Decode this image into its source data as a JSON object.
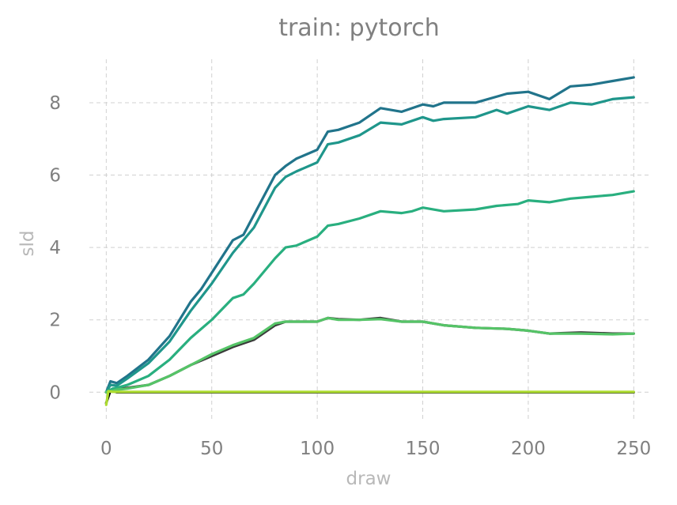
{
  "chart_data": {
    "type": "line",
    "title": "train: pytorch",
    "xlabel": "draw",
    "ylabel": "sld",
    "xlim": [
      -8,
      257
    ],
    "ylim": [
      -0.78,
      9.2
    ],
    "xticks": [
      0,
      50,
      100,
      150,
      200,
      250
    ],
    "yticks": [
      0,
      2,
      4,
      6,
      8
    ],
    "xtick_labels": [
      "0",
      "50",
      "100",
      "150",
      "200",
      "250"
    ],
    "ytick_labels": [
      "0",
      "2",
      "4",
      "6",
      "8"
    ],
    "grid": true,
    "legend": "none",
    "series": [
      {
        "color": "#000000",
        "points": [
          [
            0,
            -0.3
          ],
          [
            2,
            0.05
          ],
          [
            5,
            0.0
          ],
          [
            250,
            0.0
          ]
        ]
      },
      {
        "color": "#3a3a3a",
        "points": [
          [
            0,
            0.0
          ],
          [
            5,
            0.08
          ],
          [
            10,
            0.12
          ],
          [
            20,
            0.2
          ],
          [
            30,
            0.45
          ],
          [
            40,
            0.75
          ],
          [
            50,
            1.0
          ],
          [
            60,
            1.25
          ],
          [
            70,
            1.45
          ],
          [
            80,
            1.85
          ],
          [
            85,
            1.95
          ],
          [
            90,
            1.95
          ],
          [
            100,
            1.95
          ],
          [
            105,
            2.05
          ],
          [
            110,
            2.02
          ],
          [
            120,
            2.0
          ],
          [
            130,
            2.05
          ],
          [
            140,
            1.95
          ],
          [
            150,
            1.95
          ],
          [
            160,
            1.85
          ],
          [
            175,
            1.78
          ],
          [
            190,
            1.75
          ],
          [
            200,
            1.7
          ],
          [
            210,
            1.62
          ],
          [
            225,
            1.65
          ],
          [
            240,
            1.62
          ],
          [
            250,
            1.62
          ]
        ]
      },
      {
        "color": "#21748b",
        "points": [
          [
            0,
            0.0
          ],
          [
            2,
            0.3
          ],
          [
            5,
            0.25
          ],
          [
            10,
            0.45
          ],
          [
            20,
            0.9
          ],
          [
            30,
            1.55
          ],
          [
            40,
            2.5
          ],
          [
            45,
            2.85
          ],
          [
            50,
            3.3
          ],
          [
            60,
            4.2
          ],
          [
            65,
            4.35
          ],
          [
            70,
            4.9
          ],
          [
            80,
            6.0
          ],
          [
            85,
            6.25
          ],
          [
            90,
            6.45
          ],
          [
            100,
            6.7
          ],
          [
            105,
            7.2
          ],
          [
            110,
            7.25
          ],
          [
            120,
            7.45
          ],
          [
            130,
            7.85
          ],
          [
            140,
            7.75
          ],
          [
            150,
            7.95
          ],
          [
            155,
            7.9
          ],
          [
            160,
            8.0
          ],
          [
            175,
            8.0
          ],
          [
            190,
            8.25
          ],
          [
            200,
            8.3
          ],
          [
            210,
            8.1
          ],
          [
            220,
            8.45
          ],
          [
            230,
            8.5
          ],
          [
            240,
            8.6
          ],
          [
            250,
            8.7
          ]
        ]
      },
      {
        "color": "#1f968b",
        "points": [
          [
            0,
            0.0
          ],
          [
            2,
            0.2
          ],
          [
            5,
            0.18
          ],
          [
            10,
            0.38
          ],
          [
            20,
            0.8
          ],
          [
            30,
            1.4
          ],
          [
            40,
            2.25
          ],
          [
            50,
            3.0
          ],
          [
            60,
            3.85
          ],
          [
            70,
            4.55
          ],
          [
            80,
            5.65
          ],
          [
            85,
            5.95
          ],
          [
            90,
            6.1
          ],
          [
            100,
            6.35
          ],
          [
            105,
            6.85
          ],
          [
            110,
            6.9
          ],
          [
            120,
            7.1
          ],
          [
            130,
            7.45
          ],
          [
            140,
            7.4
          ],
          [
            150,
            7.6
          ],
          [
            155,
            7.5
          ],
          [
            160,
            7.55
          ],
          [
            175,
            7.6
          ],
          [
            185,
            7.8
          ],
          [
            190,
            7.7
          ],
          [
            200,
            7.9
          ],
          [
            210,
            7.8
          ],
          [
            220,
            8.0
          ],
          [
            230,
            7.95
          ],
          [
            240,
            8.1
          ],
          [
            250,
            8.15
          ]
        ]
      },
      {
        "color": "#29af7f",
        "points": [
          [
            0,
            0.0
          ],
          [
            3,
            0.1
          ],
          [
            5,
            0.12
          ],
          [
            10,
            0.2
          ],
          [
            20,
            0.45
          ],
          [
            30,
            0.9
          ],
          [
            40,
            1.5
          ],
          [
            50,
            2.0
          ],
          [
            60,
            2.6
          ],
          [
            65,
            2.7
          ],
          [
            70,
            3.0
          ],
          [
            80,
            3.7
          ],
          [
            85,
            4.0
          ],
          [
            90,
            4.05
          ],
          [
            100,
            4.3
          ],
          [
            105,
            4.6
          ],
          [
            110,
            4.65
          ],
          [
            120,
            4.8
          ],
          [
            130,
            5.0
          ],
          [
            140,
            4.95
          ],
          [
            145,
            5.0
          ],
          [
            150,
            5.1
          ],
          [
            160,
            5.0
          ],
          [
            175,
            5.05
          ],
          [
            185,
            5.15
          ],
          [
            195,
            5.2
          ],
          [
            200,
            5.3
          ],
          [
            210,
            5.25
          ],
          [
            220,
            5.35
          ],
          [
            230,
            5.4
          ],
          [
            240,
            5.45
          ],
          [
            250,
            5.55
          ]
        ]
      },
      {
        "color": "#55c467",
        "points": [
          [
            0,
            0.0
          ],
          [
            5,
            0.07
          ],
          [
            10,
            0.1
          ],
          [
            20,
            0.2
          ],
          [
            30,
            0.45
          ],
          [
            40,
            0.75
          ],
          [
            50,
            1.05
          ],
          [
            60,
            1.3
          ],
          [
            70,
            1.5
          ],
          [
            80,
            1.9
          ],
          [
            85,
            1.95
          ],
          [
            90,
            1.95
          ],
          [
            100,
            1.95
          ],
          [
            105,
            2.05
          ],
          [
            110,
            2.0
          ],
          [
            120,
            2.0
          ],
          [
            130,
            2.02
          ],
          [
            140,
            1.95
          ],
          [
            150,
            1.95
          ],
          [
            160,
            1.85
          ],
          [
            175,
            1.78
          ],
          [
            190,
            1.75
          ],
          [
            200,
            1.7
          ],
          [
            210,
            1.62
          ],
          [
            225,
            1.62
          ],
          [
            240,
            1.6
          ],
          [
            250,
            1.62
          ]
        ]
      },
      {
        "color": "#addc30",
        "points": [
          [
            0,
            -0.35
          ],
          [
            1,
            0.03
          ],
          [
            3,
            0.01
          ],
          [
            250,
            0.01
          ]
        ]
      }
    ]
  }
}
